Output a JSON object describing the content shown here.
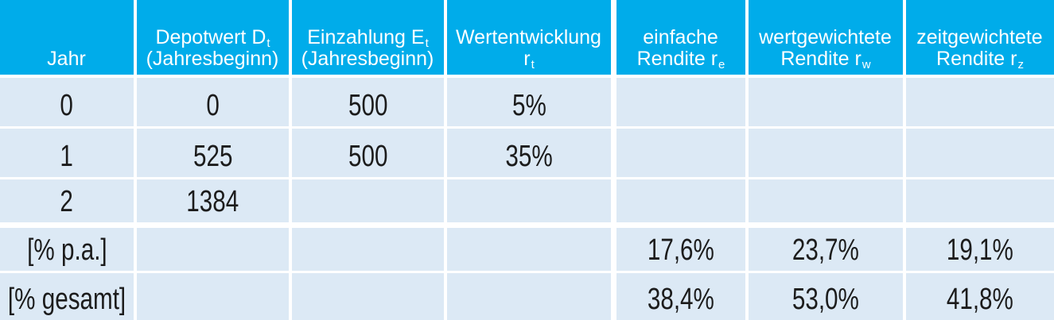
{
  "colors": {
    "header_bg": "#00ACEA",
    "row_bg": "#DCE9F5",
    "header_text": "#FFFFFF",
    "cell_text": "#1C1C1C",
    "divider": "#FFFFFF"
  },
  "table": {
    "header": {
      "columns": [
        {
          "line1": "",
          "line1_sub": "",
          "line2": "Jahr",
          "line2_sub": ""
        },
        {
          "line1": "Depotwert D",
          "line1_sub": "t",
          "line2": "(Jahresbeginn)",
          "line2_sub": ""
        },
        {
          "line1": "Einzahlung E",
          "line1_sub": "t",
          "line2": "(Jahresbeginn)",
          "line2_sub": ""
        },
        {
          "line1": "Wertentwicklung",
          "line1_sub": "",
          "line2": "r",
          "line2_sub": "t"
        },
        {
          "line1": "einfache",
          "line1_sub": "",
          "line2": "Rendite r",
          "line2_sub": "e"
        },
        {
          "line1": "wertgewichtete",
          "line1_sub": "",
          "line2": "Rendite r",
          "line2_sub": "w"
        },
        {
          "line1": "zeitgewichtete",
          "line1_sub": "",
          "line2": "Rendite r",
          "line2_sub": "z"
        }
      ]
    },
    "rows": [
      {
        "cells": [
          "0",
          "0",
          "500",
          "5%",
          "",
          "",
          ""
        ]
      },
      {
        "cells": [
          "1",
          "525",
          "500",
          "35%",
          "",
          "",
          ""
        ]
      },
      {
        "cells": [
          "2",
          "1384",
          "",
          "",
          "",
          "",
          ""
        ]
      },
      {
        "cells": [
          "[% p.a.]",
          "",
          "",
          "",
          "17,6%",
          "23,7%",
          "19,1%"
        ]
      },
      {
        "cells": [
          "[% gesamt]",
          "",
          "",
          "",
          "38,4%",
          "53,0%",
          "41,8%"
        ]
      }
    ]
  }
}
